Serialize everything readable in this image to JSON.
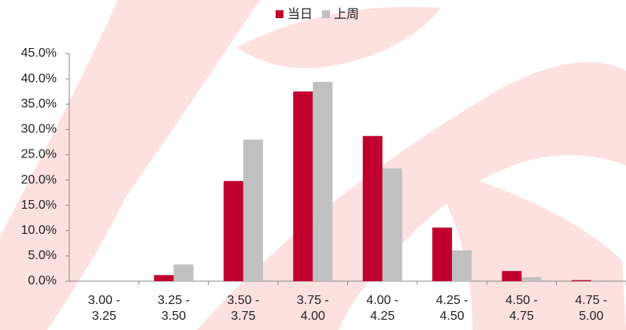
{
  "chart_data": {
    "type": "bar",
    "categories": [
      "3.00 - 3.25",
      "3.25 - 3.50",
      "3.50 - 3.75",
      "3.75 - 4.00",
      "4.00 - 4.25",
      "4.25 - 4.50",
      "4.50 - 4.75",
      "4.75 - 5.00"
    ],
    "series": [
      {
        "name": "当日",
        "color": "#c0002f",
        "values": [
          0,
          1.2,
          19.8,
          37.5,
          28.7,
          10.6,
          2.0,
          0.2
        ]
      },
      {
        "name": "上周",
        "color": "#c0c0c0",
        "values": [
          0,
          3.3,
          28.0,
          39.4,
          22.3,
          6.1,
          0.8,
          0
        ]
      }
    ],
    "ylim": [
      0,
      45
    ],
    "yticks": [
      {
        "value": 0,
        "label": "0.0%"
      },
      {
        "value": 5,
        "label": "5.0%"
      },
      {
        "value": 10,
        "label": "10.0%"
      },
      {
        "value": 15,
        "label": "15.0%"
      },
      {
        "value": 20,
        "label": "20.0%"
      },
      {
        "value": 25,
        "label": "25.0%"
      },
      {
        "value": 30,
        "label": "30.0%"
      },
      {
        "value": 35,
        "label": "35.0%"
      },
      {
        "value": 40,
        "label": "40.0%"
      },
      {
        "value": 45,
        "label": "45.0%"
      }
    ],
    "grid": false,
    "legend": "top"
  }
}
